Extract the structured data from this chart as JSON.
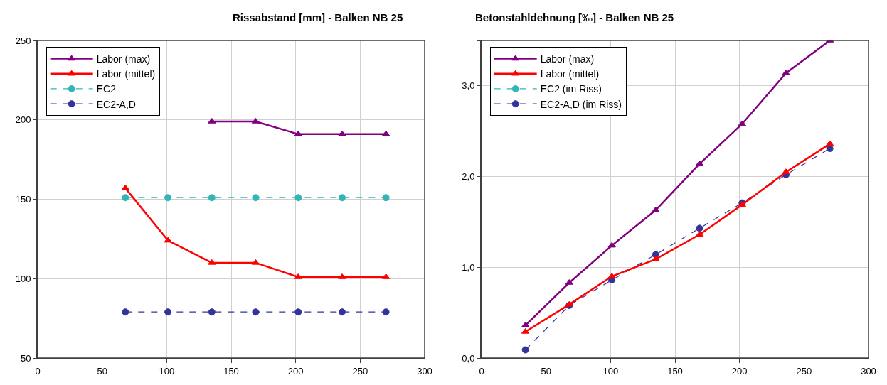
{
  "chart_data": [
    {
      "type": "line",
      "title": "Rissabstand [mm] - Balken NB 25",
      "x": [
        68,
        101,
        135,
        169,
        202,
        236,
        270
      ],
      "series": [
        {
          "name": "Labor (max)",
          "color": "#800080",
          "marker": "triangle",
          "line_style": "solid",
          "values": [
            null,
            null,
            199,
            199,
            191,
            191,
            191
          ]
        },
        {
          "name": "Labor (mittel)",
          "color": "#ff0000",
          "marker": "triangle",
          "line_style": "solid",
          "values": [
            157,
            124,
            110,
            110,
            101,
            101,
            101
          ]
        },
        {
          "name": "EC2",
          "color": "#33b5b5",
          "marker": "circle",
          "line_style": "dashed",
          "values": [
            151,
            151,
            151,
            151,
            151,
            151,
            151
          ]
        },
        {
          "name": "EC2-A,D",
          "color": "#333399",
          "marker": "circle",
          "line_style": "dashed",
          "values": [
            79,
            79,
            79,
            79,
            79,
            79,
            79
          ]
        }
      ],
      "xlim": [
        0,
        300
      ],
      "xticks": [
        0,
        50,
        100,
        150,
        200,
        250,
        300
      ],
      "ylim": [
        50,
        250
      ],
      "yticks": [
        50,
        100,
        150,
        200,
        250
      ],
      "grid": true,
      "legend": "top left"
    },
    {
      "type": "line",
      "title": "Betonstahldehnung [‰] - Balken NB 25",
      "x": [
        34,
        68,
        101,
        135,
        169,
        202,
        236,
        270
      ],
      "series": [
        {
          "name": "Labor (max)",
          "color": "#800080",
          "marker": "triangle",
          "line_style": "solid",
          "values": [
            0.36,
            0.83,
            1.24,
            1.63,
            2.14,
            2.58,
            3.14,
            3.5
          ]
        },
        {
          "name": "Labor (mittel)",
          "color": "#ff0000",
          "marker": "triangle",
          "line_style": "solid",
          "values": [
            0.29,
            0.59,
            0.9,
            1.09,
            1.36,
            1.69,
            2.05,
            2.36
          ]
        },
        {
          "name": "EC2 (im Riss)",
          "color": "#33b5b5",
          "marker": "circle",
          "line_style": "dashed",
          "values": [
            null,
            null,
            null,
            null,
            null,
            null,
            null,
            null
          ]
        },
        {
          "name": "EC2-A,D (im Riss)",
          "color": "#333399",
          "marker": "circle",
          "line_style": "dashed",
          "values": [
            0.09,
            0.58,
            0.86,
            1.14,
            1.43,
            1.71,
            2.02,
            2.31
          ]
        }
      ],
      "xlim": [
        0,
        300
      ],
      "xticks": [
        0,
        50,
        100,
        150,
        200,
        250,
        300
      ],
      "ylim": [
        0,
        3.5
      ],
      "yticks": [
        {
          "value": 0,
          "label": "0,0"
        },
        {
          "value": 0.5,
          "label": null
        },
        {
          "value": 1,
          "label": "1,0"
        },
        {
          "value": 1.5,
          "label": null
        },
        {
          "value": 2,
          "label": "2,0"
        },
        {
          "value": 2.5,
          "label": null
        },
        {
          "value": 3,
          "label": "3,0"
        },
        {
          "value": 3.5,
          "label": null
        }
      ],
      "grid": true,
      "legend": "top left"
    }
  ]
}
